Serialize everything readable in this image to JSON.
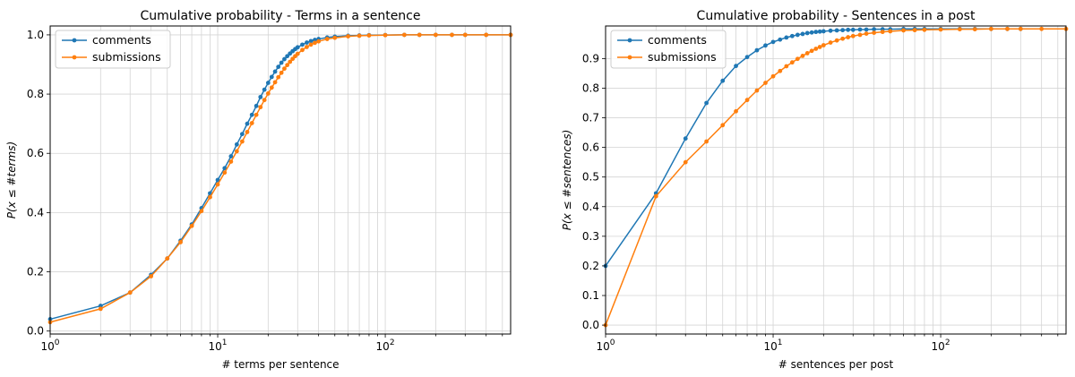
{
  "chart_data": [
    {
      "type": "line",
      "title": "Cumulative probability  - Terms in a sentence",
      "xlabel": "# terms per sentence",
      "ylabel": "P(x ≤ #terms)",
      "xscale": "log",
      "xlim": [
        1,
        560
      ],
      "ylim": [
        -0.01,
        1.03
      ],
      "xticks": [
        {
          "value": 1,
          "base": "10",
          "exp": "0"
        },
        {
          "value": 10,
          "base": "10",
          "exp": "1"
        },
        {
          "value": 100,
          "base": "10",
          "exp": "2"
        }
      ],
      "yticks": [
        0.0,
        0.2,
        0.4,
        0.6,
        0.8,
        1.0
      ],
      "ytick_labels": [
        "0.0",
        "0.2",
        "0.4",
        "0.6",
        "0.8",
        "1.0"
      ],
      "grid": true,
      "legend": "top-left",
      "series": [
        {
          "name": "comments",
          "color": "#1f77b4",
          "x": [
            1,
            2,
            3,
            4,
            5,
            6,
            7,
            8,
            9,
            10,
            11,
            12,
            13,
            14,
            15,
            16,
            17,
            18,
            19,
            20,
            21,
            22,
            23,
            24,
            25,
            26,
            27,
            28,
            29,
            30,
            32,
            34,
            36,
            38,
            40,
            45,
            50,
            60,
            70,
            80,
            100,
            130,
            160,
            200,
            250,
            300,
            400,
            560
          ],
          "y": [
            0.04,
            0.085,
            0.13,
            0.19,
            0.245,
            0.305,
            0.36,
            0.415,
            0.465,
            0.51,
            0.55,
            0.59,
            0.63,
            0.665,
            0.7,
            0.73,
            0.76,
            0.79,
            0.815,
            0.838,
            0.858,
            0.876,
            0.892,
            0.906,
            0.918,
            0.928,
            0.937,
            0.945,
            0.952,
            0.958,
            0.967,
            0.974,
            0.979,
            0.983,
            0.986,
            0.991,
            0.994,
            0.997,
            0.998,
            0.999,
            0.9995,
            1.0,
            1.0,
            1.0,
            1.0,
            1.0,
            1.0,
            1.0
          ]
        },
        {
          "name": "submissions",
          "color": "#ff7f0e",
          "x": [
            1,
            2,
            3,
            4,
            5,
            6,
            7,
            8,
            9,
            10,
            11,
            12,
            13,
            14,
            15,
            16,
            17,
            18,
            19,
            20,
            21,
            22,
            23,
            24,
            25,
            26,
            27,
            28,
            29,
            30,
            32,
            34,
            36,
            38,
            40,
            45,
            50,
            60,
            70,
            80,
            100,
            130,
            160,
            200,
            250,
            300,
            400,
            560
          ],
          "y": [
            0.03,
            0.075,
            0.13,
            0.185,
            0.245,
            0.3,
            0.355,
            0.405,
            0.452,
            0.495,
            0.535,
            0.572,
            0.607,
            0.64,
            0.672,
            0.702,
            0.73,
            0.756,
            0.78,
            0.802,
            0.822,
            0.84,
            0.857,
            0.872,
            0.886,
            0.898,
            0.909,
            0.919,
            0.928,
            0.936,
            0.949,
            0.959,
            0.967,
            0.973,
            0.978,
            0.986,
            0.99,
            0.995,
            0.997,
            0.998,
            0.999,
            1.0,
            1.0,
            1.0,
            1.0,
            1.0,
            1.0,
            1.0
          ]
        }
      ]
    },
    {
      "type": "line",
      "title": "Cumulative probability - Sentences in a post",
      "xlabel": "# sentences per post",
      "ylabel": "P(x ≤ #sentences)",
      "xscale": "log",
      "xlim": [
        1,
        560
      ],
      "ylim": [
        -0.03,
        1.01
      ],
      "xticks": [
        {
          "value": 1,
          "base": "10",
          "exp": "0"
        },
        {
          "value": 10,
          "base": "10",
          "exp": "1"
        },
        {
          "value": 100,
          "base": "10",
          "exp": "2"
        }
      ],
      "yticks": [
        0.0,
        0.1,
        0.2,
        0.3,
        0.4,
        0.5,
        0.6,
        0.7,
        0.8,
        0.9
      ],
      "ytick_labels": [
        "0.0",
        "0.1",
        "0.2",
        "0.3",
        "0.4",
        "0.5",
        "0.6",
        "0.7",
        "0.8",
        "0.9"
      ],
      "grid": true,
      "legend": "top-left",
      "series": [
        {
          "name": "comments",
          "color": "#1f77b4",
          "x": [
            1,
            2,
            3,
            4,
            5,
            6,
            7,
            8,
            9,
            10,
            11,
            12,
            13,
            14,
            15,
            16,
            17,
            18,
            19,
            20,
            22,
            24,
            26,
            28,
            30,
            33,
            36,
            40,
            45,
            50,
            60,
            70,
            80,
            100,
            130,
            160,
            200,
            250,
            300
          ],
          "y": [
            0.2,
            0.445,
            0.63,
            0.75,
            0.825,
            0.875,
            0.905,
            0.928,
            0.944,
            0.956,
            0.964,
            0.971,
            0.976,
            0.98,
            0.983,
            0.986,
            0.988,
            0.99,
            0.991,
            0.992,
            0.994,
            0.995,
            0.996,
            0.997,
            0.997,
            0.998,
            0.998,
            0.999,
            0.999,
            0.999,
            1.0,
            1.0,
            1.0,
            1.0,
            1.0,
            1.0,
            1.0,
            1.0,
            1.0
          ]
        },
        {
          "name": "submissions",
          "color": "#ff7f0e",
          "x": [
            1,
            2,
            3,
            4,
            5,
            6,
            7,
            8,
            9,
            10,
            11,
            12,
            13,
            14,
            15,
            16,
            17,
            18,
            19,
            20,
            22,
            24,
            26,
            28,
            30,
            33,
            36,
            40,
            45,
            50,
            60,
            70,
            80,
            100,
            130,
            160,
            200,
            250,
            300,
            400,
            560
          ],
          "y": [
            0.0,
            0.435,
            0.55,
            0.62,
            0.675,
            0.722,
            0.76,
            0.792,
            0.818,
            0.84,
            0.858,
            0.874,
            0.887,
            0.899,
            0.909,
            0.918,
            0.926,
            0.933,
            0.939,
            0.945,
            0.954,
            0.961,
            0.967,
            0.972,
            0.976,
            0.98,
            0.984,
            0.987,
            0.99,
            0.992,
            0.995,
            0.996,
            0.997,
            0.998,
            0.999,
            0.999,
            1.0,
            1.0,
            1.0,
            1.0,
            1.0
          ]
        }
      ]
    }
  ]
}
